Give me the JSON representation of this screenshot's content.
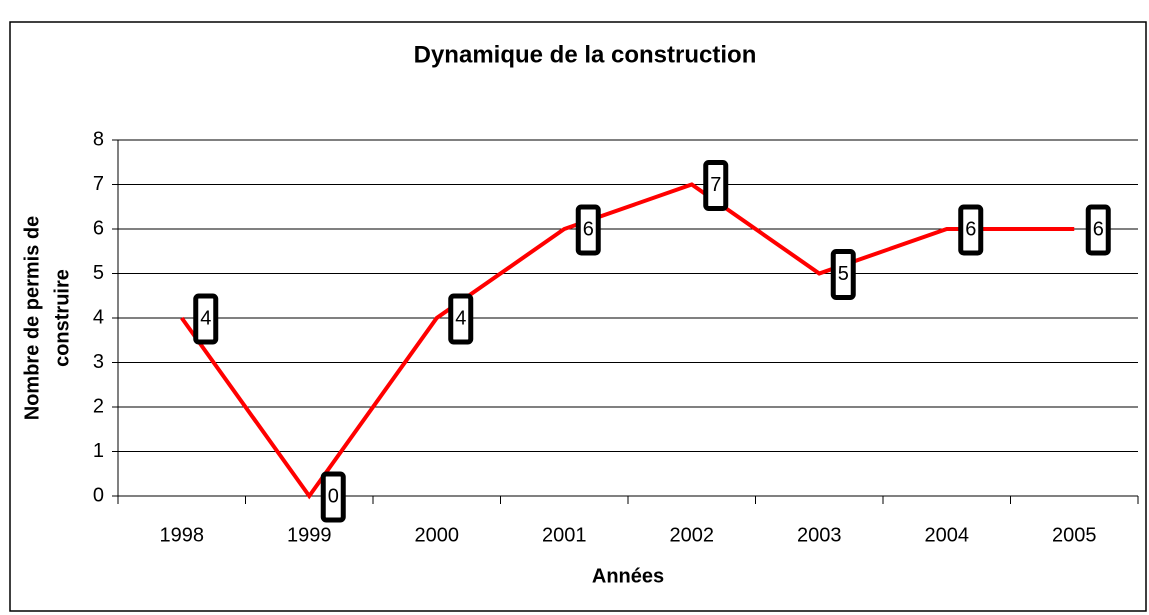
{
  "chart_data": {
    "type": "line",
    "title": "Dynamique de la construction",
    "x_label": "Années",
    "y_label": [
      "Nombre de permis de",
      "construire"
    ],
    "categories": [
      "1998",
      "1999",
      "2000",
      "2001",
      "2002",
      "2003",
      "2004",
      "2005"
    ],
    "values": [
      4,
      0,
      4,
      6,
      7,
      5,
      6,
      6
    ],
    "color": "#ff0000",
    "ylim": [
      0,
      8
    ],
    "yticks": [
      0,
      1,
      2,
      3,
      4,
      5,
      6,
      7,
      8
    ],
    "grid": true,
    "data_labels": true
  }
}
